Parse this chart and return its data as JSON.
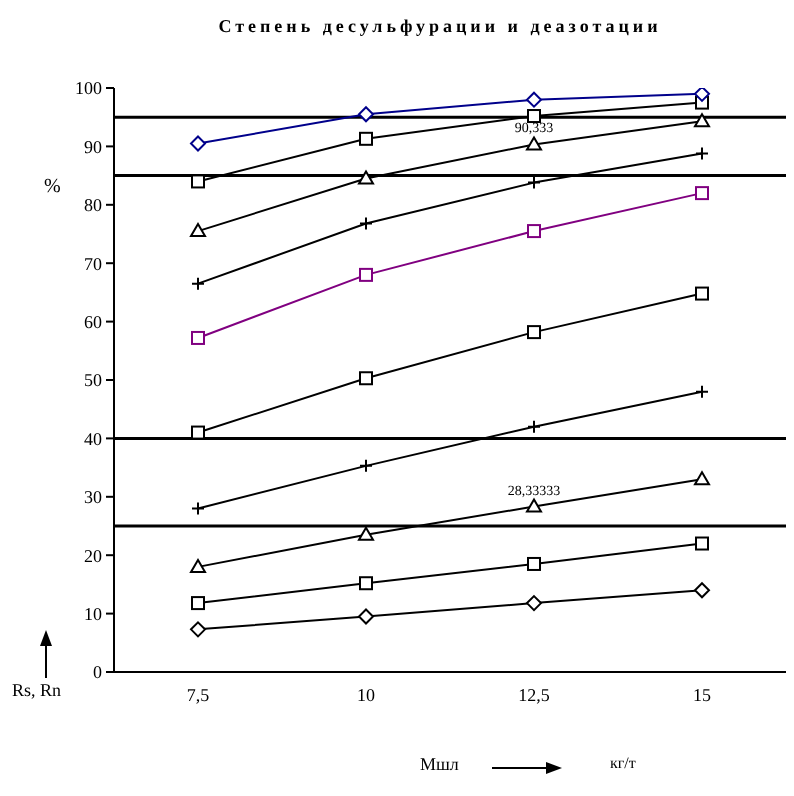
{
  "chart_data": {
    "type": "line",
    "title": "Степень десульфурации и деазотации",
    "xlabel": "Мшл",
    "ylabel": "%",
    "categories": [
      "7,5",
      "10",
      "12,5",
      "15"
    ],
    "ylim": [
      0,
      100
    ],
    "yticks": [
      0,
      10,
      20,
      30,
      40,
      50,
      60,
      70,
      80,
      90,
      100
    ],
    "grid": false,
    "legend": false,
    "series": [
      {
        "color": "#00008b",
        "marker": "diamond",
        "values": [
          90.5,
          95.5,
          98,
          99
        ]
      },
      {
        "color": "#000000",
        "marker": "square",
        "values": [
          84,
          91.3,
          95.2,
          97.5
        ]
      },
      {
        "color": "#000000",
        "marker": "triangle",
        "values": [
          75.5,
          84.5,
          90.333,
          94.3
        ]
      },
      {
        "color": "#000000",
        "marker": "cross",
        "values": [
          66.5,
          76.8,
          83.8,
          88.8
        ]
      },
      {
        "color": "#800080",
        "marker": "square",
        "values": [
          57.2,
          68,
          75.5,
          82
        ]
      },
      {
        "color": "#000000",
        "marker": "square",
        "values": [
          41,
          50.3,
          58.2,
          64.8
        ]
      },
      {
        "color": "#000000",
        "marker": "cross",
        "values": [
          28,
          35.3,
          42,
          48
        ]
      },
      {
        "color": "#000000",
        "marker": "triangle",
        "values": [
          18,
          23.5,
          28.333,
          33
        ]
      },
      {
        "color": "#000000",
        "marker": "square",
        "values": [
          11.8,
          15.2,
          18.5,
          22
        ]
      },
      {
        "color": "#000000",
        "marker": "diamond",
        "values": [
          7.3,
          9.5,
          11.8,
          14
        ]
      }
    ],
    "ref_lines": [
      {
        "axis": "y",
        "value": 95,
        "color": "#000000"
      },
      {
        "axis": "y",
        "value": 85,
        "color": "#000000"
      },
      {
        "axis": "y",
        "value": 40,
        "color": "#000000"
      },
      {
        "axis": "y",
        "value": 25,
        "color": "#000000"
      }
    ],
    "annotations": [
      "кг/т",
      "Rs, Rn",
      {
        "text": "90,333",
        "x": "12,5",
        "y": 90.333
      },
      {
        "text": "28,33333",
        "x": "12,5",
        "y": 28.333
      }
    ]
  }
}
